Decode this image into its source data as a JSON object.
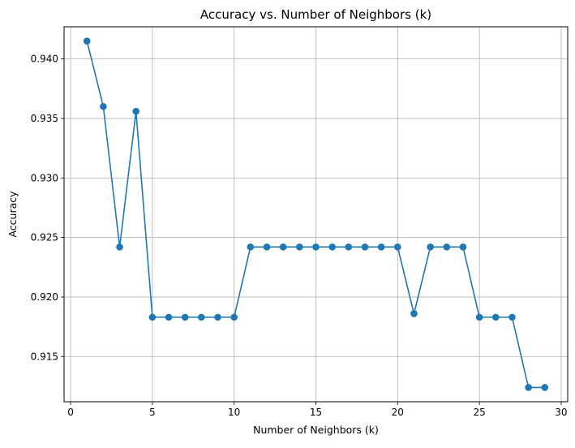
{
  "chart_data": {
    "type": "line",
    "title": "Accuracy vs. Number of Neighbors (k)",
    "xlabel": "Number of Neighbors (k)",
    "ylabel": "Accuracy",
    "xlim": [
      -0.4,
      30.4
    ],
    "ylim": [
      0.9112,
      0.9427
    ],
    "xticks": [
      0,
      5,
      10,
      15,
      20,
      25,
      30
    ],
    "yticks": [
      0.915,
      0.92,
      0.925,
      0.93,
      0.935,
      0.94
    ],
    "grid": true,
    "marker": "circle",
    "line_color": "#1f77b4",
    "series": [
      {
        "x": [
          1,
          2,
          3,
          4,
          5,
          6,
          7,
          8,
          9,
          10,
          11,
          12,
          13,
          14,
          15,
          16,
          17,
          18,
          19,
          20,
          21,
          22,
          23,
          24,
          25,
          26,
          27,
          28,
          29
        ],
        "values": [
          0.9415,
          0.936,
          0.9242,
          0.9356,
          0.9183,
          0.9183,
          0.9183,
          0.9183,
          0.9183,
          0.9183,
          0.9242,
          0.9242,
          0.9242,
          0.9242,
          0.9242,
          0.9242,
          0.9242,
          0.9242,
          0.9242,
          0.9242,
          0.9186,
          0.9242,
          0.9242,
          0.9242,
          0.9183,
          0.9183,
          0.9183,
          0.9124,
          0.9124
        ]
      }
    ]
  }
}
